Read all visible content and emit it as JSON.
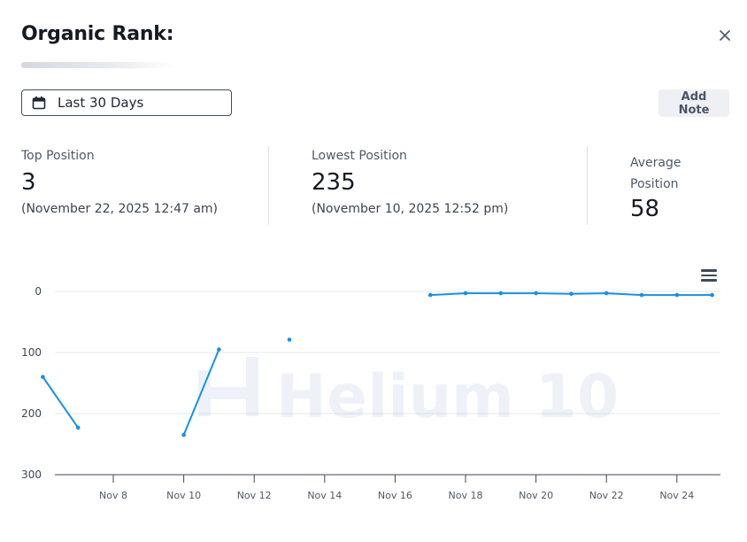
{
  "modal": {
    "title": "Organic Rank:",
    "close_icon": "close-icon"
  },
  "toolbar": {
    "date_range_label": "Last 30 Days",
    "date_icon": "calendar-icon",
    "add_note_label": "Add Note"
  },
  "stats": {
    "top": {
      "label": "Top Position",
      "value": "3",
      "date": "(November 22, 2025 12:47 am)"
    },
    "lowest": {
      "label": "Lowest Position",
      "value": "235",
      "date": "(November 10, 2025 12:52 pm)"
    },
    "average": {
      "label_line1": "Average",
      "label_line2": "Position",
      "value": "58"
    }
  },
  "watermark": "Helium 10",
  "colors": {
    "series": "#1a8fe3",
    "grid": "#e6e8eb",
    "axis": "#3c4656"
  },
  "chart_data": {
    "type": "line",
    "ylim": [
      0,
      300
    ],
    "y_reversed": true,
    "y_ticks": [
      "0",
      "100",
      "200",
      "300"
    ],
    "x_ticks": [
      "Nov 8",
      "Nov 10",
      "Nov 12",
      "Nov 14",
      "Nov 16",
      "Nov 18",
      "Nov 20",
      "Nov 22",
      "Nov 24"
    ],
    "series": [
      {
        "segments": [
          [
            [
              "2025-11-06",
              140
            ],
            [
              "2025-11-07",
              223
            ]
          ],
          [
            [
              "2025-11-10",
              235
            ],
            [
              "2025-11-11",
              95
            ]
          ],
          [
            [
              "2025-11-13",
              79
            ]
          ],
          [
            [
              "2025-11-17",
              6
            ],
            [
              "2025-11-18",
              3
            ],
            [
              "2025-11-19",
              3
            ],
            [
              "2025-11-20",
              3
            ],
            [
              "2025-11-21",
              4
            ],
            [
              "2025-11-22",
              3
            ],
            [
              "2025-11-23",
              6
            ],
            [
              "2025-11-24",
              6
            ],
            [
              "2025-11-25",
              6
            ]
          ]
        ]
      }
    ]
  }
}
